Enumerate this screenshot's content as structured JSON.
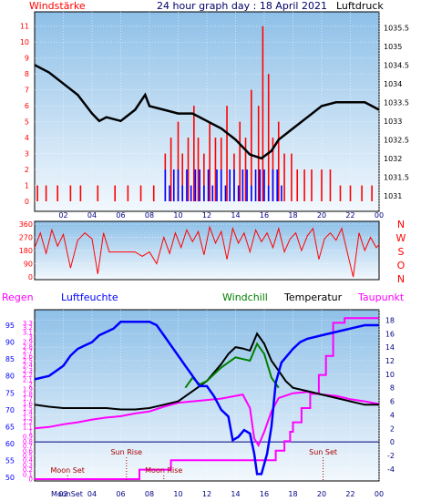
{
  "header": {
    "left_label": "Windstärke",
    "title": "24 hour graph day : 18 April 2021",
    "right_label": "Luftdruck"
  },
  "labels": {
    "regen": "Regen",
    "luftfeuchte": "Luftfeuchte",
    "windchill": "Windchill",
    "temperatur": "Temperatur",
    "taupunkt": "Taupunkt",
    "sun_rise": "Sun Rise",
    "sun_set": "Sun Set",
    "moon_set": "Moon Set",
    "moon_rise": "Moon Rise",
    "moonset_axis": "MoonSet",
    "compass": [
      "N",
      "W",
      "S",
      "O",
      "N"
    ]
  },
  "colors": {
    "panel_top": "#8ec0e8",
    "panel_bottom": "#f2f8fd",
    "wind_bar": "#ff0000",
    "gust_bar": "#0000ff",
    "pressure": "#000000",
    "direction": "#ff0000",
    "humidity": "#0000ff",
    "temperature": "#000000",
    "dewpoint": "#ff00ff",
    "windchill": "#008000",
    "rain": "#ff00ff",
    "regen_label": "#ff00ff",
    "luftfeuchte_label": "#0000ff",
    "windchill_label": "#008000",
    "taupunkt_label": "#ff00ff",
    "windstaerke_label": "#ff0000",
    "axis_red": "#ff0000",
    "axis_blue": "#0000ff",
    "axis_dark": "#000000"
  },
  "chart_data": [
    {
      "id": "wind_pressure",
      "type": "bar",
      "x_ticks": [
        "02",
        "04",
        "06",
        "08",
        "10",
        "12",
        "14",
        "16",
        "18",
        "20",
        "22",
        "00"
      ],
      "x_range_hours": [
        0,
        24
      ],
      "left_axis": {
        "ticks": [
          "0",
          "1",
          "2",
          "3",
          "4",
          "5",
          "6",
          "7",
          "8",
          "9",
          "10",
          "11"
        ],
        "range": [
          0,
          11.5
        ]
      },
      "right_axis": {
        "ticks": [
          "1031",
          "1031.5",
          "1032",
          "1032.5",
          "1033",
          "1033.5",
          "1034",
          "1034.5",
          "1035",
          "1035.5"
        ],
        "range": [
          1030.85,
          1035.75
        ]
      },
      "series": [
        {
          "name": "Windstärke",
          "color": "#ff0000",
          "x": [
            0.2,
            0.8,
            1.6,
            2.5,
            3.2,
            4.4,
            5.6,
            6.5,
            7.4,
            8.3,
            9.1,
            9.5,
            10.0,
            10.3,
            10.7,
            11.1,
            11.4,
            11.8,
            12.2,
            12.6,
            13.0,
            13.4,
            13.9,
            14.3,
            14.7,
            15.1,
            15.6,
            15.9,
            16.3,
            16.6,
            17.0,
            17.4,
            17.9,
            18.3,
            18.8,
            19.3,
            20.0,
            20.6,
            21.3,
            22.0,
            22.8,
            23.5
          ],
          "values": [
            1,
            1,
            1,
            1,
            1,
            1,
            1,
            1,
            1,
            1,
            3,
            4,
            5,
            3,
            4,
            6,
            4,
            3,
            5,
            4,
            4,
            6,
            3,
            5,
            4,
            7,
            6,
            11,
            8,
            4,
            5,
            3,
            3,
            2,
            2,
            2,
            2,
            2,
            1,
            1,
            1,
            1
          ]
        },
        {
          "name": "Böen",
          "color": "#0000ff",
          "x": [
            9.1,
            9.4,
            9.7,
            10.0,
            10.3,
            10.6,
            10.9,
            11.2,
            11.5,
            11.8,
            12.1,
            12.4,
            12.7,
            13.0,
            13.3,
            13.6,
            13.9,
            14.2,
            14.5,
            14.8,
            15.1,
            15.4,
            15.7,
            16.0,
            16.3,
            16.6,
            16.9,
            17.2
          ],
          "values": [
            2,
            1,
            2,
            2,
            1,
            2,
            1,
            2,
            2,
            1,
            2,
            1,
            2,
            2,
            1,
            2,
            2,
            1,
            2,
            2,
            1,
            2,
            2,
            2,
            1,
            2,
            2,
            1
          ]
        },
        {
          "name": "Luftdruck",
          "color": "#000000",
          "x": [
            0,
            1,
            2,
            3,
            4,
            4.5,
            5,
            6,
            7,
            7.7,
            8,
            9,
            10,
            11,
            12,
            13,
            14,
            15,
            15.8,
            16.5,
            17,
            18,
            19,
            20,
            21,
            22,
            23,
            24
          ],
          "values": [
            1034.5,
            1034.3,
            1034.0,
            1033.7,
            1033.2,
            1033.0,
            1033.1,
            1033.0,
            1033.3,
            1033.7,
            1033.4,
            1033.3,
            1033.2,
            1033.2,
            1033.0,
            1032.8,
            1032.5,
            1032.1,
            1032.0,
            1032.2,
            1032.5,
            1032.8,
            1033.1,
            1033.4,
            1033.5,
            1033.5,
            1033.5,
            1033.3
          ]
        }
      ]
    },
    {
      "id": "wind_direction",
      "type": "line",
      "x_range_hours": [
        0,
        24
      ],
      "y_ticks": [
        "0",
        "90",
        "180",
        "270",
        "360"
      ],
      "y_range": [
        0,
        360
      ],
      "series": [
        {
          "name": "Windrichtung",
          "color": "#ff0000",
          "x": [
            0,
            0.4,
            0.8,
            1.2,
            1.6,
            2.0,
            2.5,
            3.0,
            3.5,
            4.0,
            4.4,
            4.8,
            5.2,
            5.6,
            6.0,
            6.5,
            7.0,
            7.5,
            8.0,
            8.5,
            9.0,
            9.4,
            9.8,
            10.2,
            10.6,
            11.0,
            11.4,
            11.8,
            12.2,
            12.6,
            13.0,
            13.4,
            13.8,
            14.2,
            14.6,
            15.0,
            15.4,
            15.8,
            16.2,
            16.6,
            17.0,
            17.4,
            17.8,
            18.2,
            18.6,
            19.0,
            19.4,
            19.8,
            20.2,
            20.6,
            21.0,
            21.4,
            21.8,
            22.2,
            22.6,
            23.0,
            23.4,
            23.8,
            24
          ],
          "values": [
            200,
            300,
            160,
            320,
            210,
            290,
            60,
            250,
            300,
            260,
            20,
            300,
            170,
            170,
            170,
            170,
            170,
            140,
            170,
            90,
            270,
            160,
            300,
            200,
            320,
            240,
            310,
            150,
            340,
            230,
            310,
            120,
            330,
            230,
            300,
            170,
            320,
            240,
            300,
            200,
            330,
            170,
            260,
            300,
            180,
            280,
            330,
            120,
            260,
            300,
            250,
            330,
            160,
            0,
            300,
            180,
            270,
            200,
            220
          ]
        }
      ]
    },
    {
      "id": "climate",
      "type": "line",
      "x_ticks": [
        "02",
        "04",
        "06",
        "08",
        "10",
        "12",
        "14",
        "16",
        "18",
        "20",
        "22",
        "00"
      ],
      "x_range_hours": [
        0,
        24
      ],
      "rain_axis": {
        "ticks": [
          "0",
          "0.1",
          "0.2",
          "0.3",
          "0.4",
          "0.5",
          "0.6",
          "0.7",
          "0.8",
          "0.9",
          "1",
          "1.1",
          "1.2",
          "1.3",
          "1.4",
          "1.5",
          "1.6",
          "1.7",
          "1.8",
          "1.9",
          "2",
          "2.1",
          "2.2",
          "2.3",
          "2.4",
          "2.5",
          "2.6",
          "2.7",
          "2.8",
          "2.9",
          "3",
          "3.1",
          "3.2",
          "3.3"
        ],
        "range": [
          0,
          3.5
        ]
      },
      "humidity_axis": {
        "ticks": [
          "50",
          "55",
          "60",
          "65",
          "70",
          "75",
          "80",
          "85",
          "90",
          "95"
        ],
        "range": [
          49.5,
          98.5
        ]
      },
      "temp_axis": {
        "ticks": [
          "-4",
          "-2",
          "0",
          "2",
          "4",
          "6",
          "8",
          "10",
          "12",
          "14",
          "16",
          "18"
        ],
        "range": [
          -5.5,
          19
        ]
      },
      "series": [
        {
          "name": "Luftfeuchte",
          "color": "#0000ff",
          "x": [
            0,
            1,
            2,
            2.5,
            3,
            3.5,
            4,
            4.5,
            5,
            5.5,
            6,
            7,
            8,
            8.5,
            9,
            10,
            10.5,
            11,
            11.5,
            12,
            12.5,
            13,
            13.5,
            13.8,
            14.2,
            14.6,
            15,
            15.3,
            15.5,
            15.8,
            16.2,
            16.5,
            16.8,
            17.2,
            17.6,
            18,
            18.5,
            19,
            20,
            21,
            22,
            23,
            24
          ],
          "values": [
            79,
            80,
            83,
            86,
            88,
            89,
            90,
            92,
            93,
            94,
            96,
            96,
            96,
            95,
            92,
            86,
            83,
            80,
            77,
            77,
            74,
            70,
            68,
            61,
            62,
            64,
            63,
            57,
            51,
            51,
            57,
            65,
            78,
            84,
            86,
            88,
            90,
            91,
            92,
            93,
            94,
            95,
            95
          ]
        },
        {
          "name": "Temperatur",
          "color": "#000000",
          "x": [
            0,
            1,
            2,
            3,
            4,
            5,
            6,
            7,
            8,
            9,
            10,
            11,
            12,
            13,
            13.5,
            14,
            14.5,
            15,
            15.5,
            16,
            16.5,
            17,
            17.5,
            18,
            19,
            20,
            21,
            22,
            23,
            24
          ],
          "values": [
            5.5,
            5.2,
            5.0,
            5.0,
            5.0,
            5.0,
            4.8,
            4.8,
            5.0,
            5.5,
            6.0,
            7.5,
            9.0,
            11.5,
            13.0,
            14.0,
            13.8,
            13.5,
            16.0,
            14.5,
            12.0,
            10.5,
            9.0,
            8.0,
            7.5,
            7.0,
            6.5,
            6.0,
            5.5,
            5.5
          ]
        },
        {
          "name": "Taupunkt",
          "color": "#ff00ff",
          "x": [
            0,
            1,
            2,
            3,
            4,
            5,
            6,
            7,
            8,
            9,
            10,
            11,
            12,
            13,
            14,
            14.5,
            15,
            15.3,
            15.6,
            16,
            16.5,
            17,
            18,
            19,
            20,
            21,
            22,
            23,
            24
          ],
          "values": [
            2.0,
            2.2,
            2.6,
            2.9,
            3.3,
            3.6,
            3.8,
            4.2,
            4.5,
            5.2,
            5.8,
            6.0,
            6.2,
            6.4,
            6.8,
            7.0,
            5.0,
            0.5,
            -0.5,
            1.5,
            4.5,
            6.5,
            7.2,
            7.4,
            7.0,
            6.8,
            6.3,
            6.0,
            5.6
          ]
        },
        {
          "name": "Windchill",
          "color": "#008000",
          "x": [
            10.5,
            11,
            11.5,
            12,
            13,
            14,
            15,
            15.5,
            16,
            16.5,
            17
          ],
          "values": [
            8.0,
            9.5,
            8.5,
            9.0,
            11.0,
            12.5,
            12.0,
            14.5,
            13.0,
            9.5,
            8.0
          ]
        },
        {
          "name": "Regen",
          "color": "#ff00ff",
          "x": [
            0,
            5,
            7.3,
            7.3,
            9.5,
            9.5,
            14.8,
            14.8,
            16.8,
            16.8,
            17.4,
            17.4,
            17.8,
            17.8,
            18.0,
            18.0,
            18.6,
            18.6,
            19.2,
            19.2,
            19.8,
            19.8,
            20.3,
            20.3,
            20.8,
            20.8,
            21.6,
            21.6,
            24
          ],
          "values": [
            0.0,
            0.0,
            0.0,
            0.2,
            0.2,
            0.4,
            0.4,
            0.4,
            0.4,
            0.6,
            0.6,
            0.8,
            0.8,
            1.0,
            1.0,
            1.2,
            1.2,
            1.5,
            1.5,
            1.8,
            1.8,
            2.2,
            2.2,
            2.6,
            2.6,
            3.3,
            3.3,
            3.4,
            3.4
          ]
        }
      ],
      "events": [
        {
          "label": "Moon Set",
          "hour": 2.3
        },
        {
          "label": "Sun Rise",
          "hour": 6.4
        },
        {
          "label": "Moon Rise",
          "hour": 9.0
        },
        {
          "label": "Sun Set",
          "hour": 20.1
        }
      ]
    }
  ]
}
